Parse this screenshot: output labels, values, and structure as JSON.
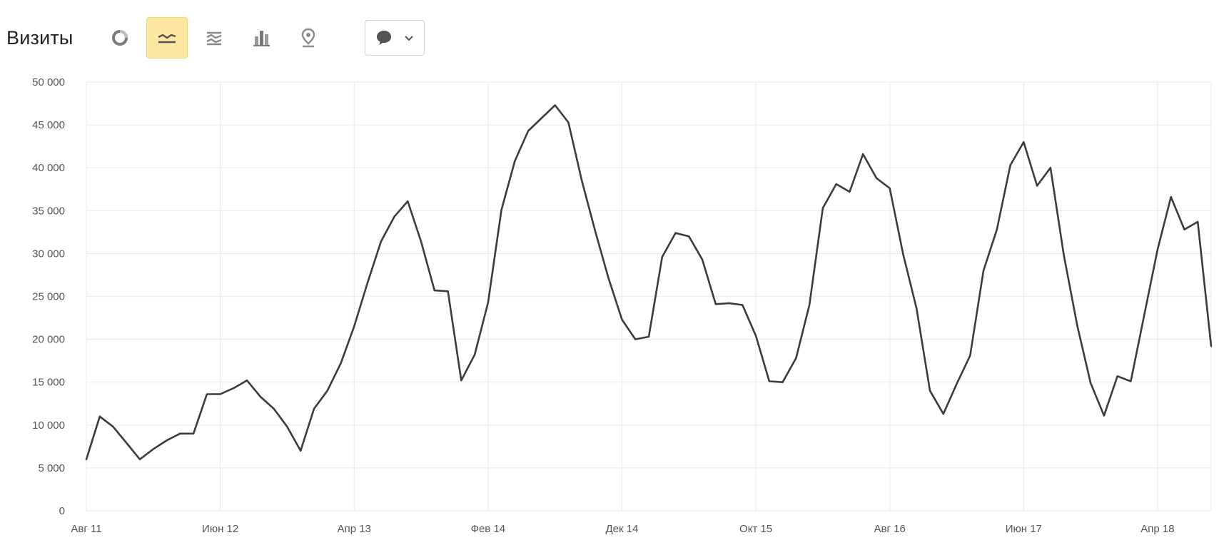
{
  "header": {
    "title": "Визиты"
  },
  "toolbar": {
    "buttons": [
      {
        "icon": "pie-chart-icon",
        "active": false
      },
      {
        "icon": "line-chart-icon",
        "active": true
      },
      {
        "icon": "area-chart-icon",
        "active": false
      },
      {
        "icon": "bar-chart-icon",
        "active": false
      },
      {
        "icon": "map-pin-icon",
        "active": false
      }
    ],
    "dropdown": {
      "icon": "speech-bubble-icon"
    }
  },
  "colors": {
    "line": "#3c3c3c",
    "grid": "#ececec",
    "active_button": "#fde8a2"
  },
  "chart_data": {
    "type": "line",
    "title": "",
    "xlabel": "",
    "ylabel": "",
    "ylim": [
      0,
      50000
    ],
    "yticks": [
      {
        "value": 0,
        "label": "0"
      },
      {
        "value": 5000,
        "label": "5 000"
      },
      {
        "value": 10000,
        "label": "10 000"
      },
      {
        "value": 15000,
        "label": "15 000"
      },
      {
        "value": 20000,
        "label": "20 000"
      },
      {
        "value": 25000,
        "label": "25 000"
      },
      {
        "value": 30000,
        "label": "30 000"
      },
      {
        "value": 35000,
        "label": "35 000"
      },
      {
        "value": 40000,
        "label": "40 000"
      },
      {
        "value": 45000,
        "label": "45 000"
      },
      {
        "value": 50000,
        "label": "50 000"
      }
    ],
    "xticks": [
      {
        "index": 0,
        "label": "Авг 11"
      },
      {
        "index": 10,
        "label": "Июн 12"
      },
      {
        "index": 20,
        "label": "Апр 13"
      },
      {
        "index": 30,
        "label": "Фев 14"
      },
      {
        "index": 40,
        "label": "Дек 14"
      },
      {
        "index": 50,
        "label": "Окт 15"
      },
      {
        "index": 60,
        "label": "Авг 16"
      },
      {
        "index": 70,
        "label": "Июн 17"
      },
      {
        "index": 80,
        "label": "Апр 18"
      }
    ],
    "grid": true,
    "series": [
      {
        "values": [
          6000,
          11000,
          9800,
          7900,
          6000,
          7200,
          8200,
          9000,
          9000,
          13600,
          13600,
          14300,
          15200,
          13300,
          11900,
          9800,
          7000,
          11900,
          14000,
          17200,
          21500,
          26600,
          31400,
          34300,
          36100,
          31400,
          25700,
          25600,
          15200,
          18200,
          24300,
          35100,
          40800,
          44300,
          45800,
          47300,
          45300,
          38500,
          32600,
          27100,
          22300,
          20000,
          20300,
          29600,
          32400,
          32000,
          29300,
          24100,
          24200,
          24000,
          20400,
          15100,
          15000,
          17800,
          24000,
          35300,
          38100,
          37200,
          41600,
          38800,
          37600,
          29900,
          23600,
          14000,
          11300,
          14800,
          18100,
          28000,
          32800,
          40300,
          43000,
          37900,
          40000,
          29800,
          21600,
          14900,
          11100,
          15700,
          15100,
          22800,
          30500,
          36600,
          32800,
          33700,
          19200
        ]
      }
    ]
  }
}
